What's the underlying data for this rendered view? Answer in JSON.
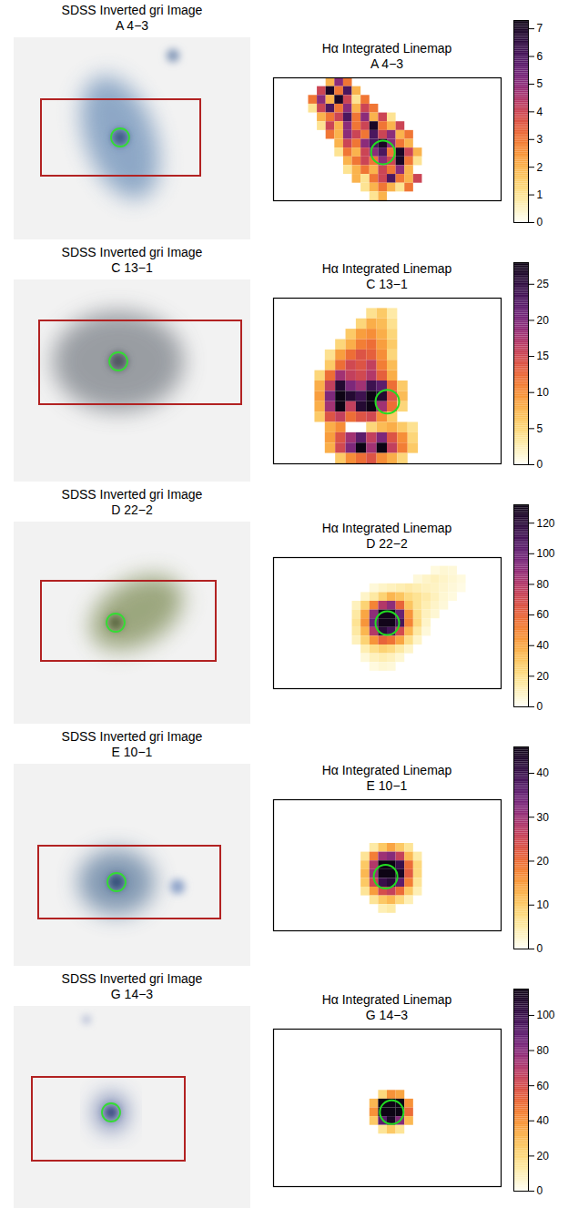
{
  "chart_data": [
    {
      "type": "image",
      "title": "SDSS Inverted gri Image",
      "subtitle": "A 4−3"
    },
    {
      "type": "heatmap",
      "title": "Hα Integrated Linemap",
      "subtitle": "A 4−3",
      "tick_labels": false,
      "xlim": [
        0,
        26
      ],
      "ylim": [
        0,
        14
      ],
      "cells": [
        {
          "row": 0,
          "col": 6,
          "values": [
            2,
            5,
            3
          ]
        },
        {
          "row": 1,
          "col": 5,
          "values": [
            4,
            7,
            3,
            6,
            2
          ]
        },
        {
          "row": 2,
          "col": 4,
          "values": [
            3,
            5,
            2,
            7,
            4,
            1,
            3
          ]
        },
        {
          "row": 3,
          "col": 4,
          "values": [
            1,
            4,
            6,
            3,
            5,
            2,
            4,
            3
          ]
        },
        {
          "row": 4,
          "col": 5,
          "values": [
            2,
            3,
            4,
            6,
            3,
            5,
            2,
            4,
            1
          ]
        },
        {
          "row": 5,
          "col": 5,
          "values": [
            1,
            4,
            2,
            5,
            3,
            4,
            7,
            3,
            2,
            4
          ]
        },
        {
          "row": 6,
          "col": 6,
          "values": [
            3,
            2,
            5,
            4,
            3,
            6,
            4,
            5,
            2,
            3
          ]
        },
        {
          "row": 7,
          "col": 7,
          "values": [
            2,
            4,
            3,
            5,
            6,
            7,
            5,
            3,
            2
          ]
        },
        {
          "row": 8,
          "col": 7,
          "values": [
            1,
            3,
            2,
            4,
            5,
            6,
            3,
            7,
            4,
            2
          ]
        },
        {
          "row": 9,
          "col": 8,
          "values": [
            2,
            3,
            4,
            3,
            5,
            4,
            7,
            3,
            1
          ]
        },
        {
          "row": 10,
          "col": 8,
          "values": [
            1,
            2,
            3,
            2,
            4,
            3,
            5,
            2
          ]
        },
        {
          "row": 11,
          "col": 9,
          "values": [
            2,
            1,
            3,
            4,
            6,
            3,
            2,
            4
          ]
        },
        {
          "row": 12,
          "col": 10,
          "values": [
            1,
            2,
            3,
            2,
            1,
            3
          ]
        },
        {
          "row": 13,
          "col": 11,
          "values": [
            1,
            2
          ]
        }
      ],
      "aperture": [
        12.5,
        8.5
      ],
      "colorbar": {
        "lim": [
          0,
          7.3
        ],
        "ticks": [
          0,
          1,
          2,
          3,
          4,
          5,
          6,
          7
        ]
      }
    },
    {
      "type": "image",
      "title": "SDSS Inverted gri Image",
      "subtitle": "C 13−1"
    },
    {
      "type": "heatmap",
      "title": "Hα Integrated Linemap",
      "subtitle": "C 13−1",
      "tick_labels": false,
      "xlim": [
        0,
        22
      ],
      "ylim": [
        0,
        16
      ],
      "cells": [
        {
          "row": 1,
          "col": 9,
          "values": [
            4,
            6,
            3
          ]
        },
        {
          "row": 2,
          "col": 8,
          "values": [
            5,
            8,
            7,
            4
          ]
        },
        {
          "row": 3,
          "col": 7,
          "values": [
            6,
            9,
            10,
            8,
            5
          ]
        },
        {
          "row": 4,
          "col": 6,
          "values": [
            5,
            8,
            11,
            12,
            9,
            6
          ]
        },
        {
          "row": 5,
          "col": 5,
          "values": [
            4,
            9,
            12,
            14,
            13,
            10,
            5
          ]
        },
        {
          "row": 6,
          "col": 5,
          "values": [
            6,
            12,
            15,
            14,
            16,
            11,
            7
          ]
        },
        {
          "row": 7,
          "col": 4,
          "values": [
            5,
            12,
            18,
            16,
            15,
            17,
            13,
            8
          ]
        },
        {
          "row": 8,
          "col": 4,
          "values": [
            8,
            16,
            26,
            20,
            18,
            24,
            22,
            12,
            6
          ]
        },
        {
          "row": 9,
          "col": 4,
          "values": [
            9,
            20,
            28,
            26,
            24,
            28,
            26,
            14,
            7
          ]
        },
        {
          "row": 10,
          "col": 4,
          "values": [
            8,
            18,
            28,
            16,
            26,
            28,
            18,
            12,
            5
          ]
        },
        {
          "row": 11,
          "col": 4,
          "values": [
            6,
            14,
            16,
            12,
            14,
            15,
            10,
            6
          ]
        },
        {
          "row": 12,
          "col": 5,
          "values": [
            8,
            10,
            null,
            null,
            5,
            7,
            8,
            6,
            4
          ]
        },
        {
          "row": 13,
          "col": 5,
          "values": [
            9,
            14,
            18,
            22,
            16,
            20,
            14,
            10,
            5
          ]
        },
        {
          "row": 14,
          "col": 5,
          "values": [
            8,
            15,
            20,
            28,
            18,
            28,
            16,
            11,
            6
          ]
        },
        {
          "row": 15,
          "col": 6,
          "values": [
            6,
            10,
            12,
            14,
            10,
            8,
            5
          ]
        }
      ],
      "aperture": [
        11,
        10
      ],
      "colorbar": {
        "lim": [
          0,
          28
        ],
        "ticks": [
          0,
          5,
          10,
          15,
          20,
          25
        ]
      }
    },
    {
      "type": "image",
      "title": "SDSS Inverted gri Image",
      "subtitle": "D 22−2"
    },
    {
      "type": "heatmap",
      "title": "Hα Integrated Linemap",
      "subtitle": "D 22−2",
      "tick_labels": false,
      "xlim": [
        0,
        26
      ],
      "ylim": [
        0,
        15
      ],
      "cells": [
        {
          "row": 1,
          "col": 18,
          "values": [
            4,
            6,
            5
          ]
        },
        {
          "row": 2,
          "col": 16,
          "values": [
            5,
            8,
            10,
            8,
            6,
            4
          ]
        },
        {
          "row": 3,
          "col": 11,
          "values": [
            5,
            8,
            10,
            12,
            14,
            12,
            10,
            9,
            7,
            5,
            3
          ]
        },
        {
          "row": 4,
          "col": 10,
          "values": [
            8,
            15,
            25,
            35,
            30,
            22,
            18,
            14,
            10,
            6,
            4
          ]
        },
        {
          "row": 5,
          "col": 9,
          "values": [
            10,
            25,
            50,
            80,
            90,
            60,
            30,
            18,
            12,
            8,
            5
          ]
        },
        {
          "row": 6,
          "col": 9,
          "values": [
            15,
            40,
            90,
            130,
            130,
            100,
            45,
            20,
            10,
            6
          ]
        },
        {
          "row": 7,
          "col": 9,
          "values": [
            18,
            45,
            100,
            130,
            130,
            110,
            50,
            22,
            8
          ]
        },
        {
          "row": 8,
          "col": 9,
          "values": [
            15,
            35,
            80,
            120,
            110,
            70,
            35,
            15,
            5
          ]
        },
        {
          "row": 9,
          "col": 9,
          "values": [
            10,
            25,
            45,
            60,
            55,
            40,
            20,
            8
          ]
        },
        {
          "row": 10,
          "col": 10,
          "values": [
            12,
            20,
            25,
            22,
            15,
            8
          ]
        },
        {
          "row": 11,
          "col": 10,
          "values": [
            5,
            10,
            12,
            10,
            6
          ]
        },
        {
          "row": 12,
          "col": 11,
          "values": [
            4,
            6,
            5
          ]
        }
      ],
      "aperture": [
        13,
        7.5
      ],
      "colorbar": {
        "lim": [
          0,
          132
        ],
        "ticks": [
          0,
          20,
          40,
          60,
          80,
          100,
          120
        ]
      }
    },
    {
      "type": "image",
      "title": "SDSS Inverted gri Image",
      "subtitle": "E 10−1"
    },
    {
      "type": "heatmap",
      "title": "Hα Integrated Linemap",
      "subtitle": "E 10−1",
      "tick_labels": false,
      "xlim": [
        0,
        26
      ],
      "ylim": [
        0,
        15
      ],
      "cells": [
        {
          "row": 5,
          "col": 11,
          "values": [
            5,
            10,
            14,
            10,
            6
          ]
        },
        {
          "row": 6,
          "col": 10,
          "values": [
            6,
            18,
            30,
            32,
            26,
            12,
            5
          ]
        },
        {
          "row": 7,
          "col": 10,
          "values": [
            10,
            28,
            46,
            46,
            40,
            20,
            8
          ]
        },
        {
          "row": 8,
          "col": 10,
          "values": [
            12,
            30,
            46,
            46,
            44,
            22,
            8
          ]
        },
        {
          "row": 9,
          "col": 10,
          "values": [
            10,
            25,
            40,
            42,
            36,
            18,
            6
          ]
        },
        {
          "row": 10,
          "col": 10,
          "values": [
            6,
            15,
            24,
            26,
            20,
            10,
            4
          ]
        },
        {
          "row": 11,
          "col": 11,
          "values": [
            6,
            10,
            12,
            8,
            4
          ]
        },
        {
          "row": 12,
          "col": 12,
          "values": [
            4,
            5
          ]
        }
      ],
      "aperture": [
        12.8,
        8.8
      ],
      "colorbar": {
        "lim": [
          0,
          46
        ],
        "ticks": [
          0,
          10,
          20,
          30,
          40
        ]
      }
    },
    {
      "type": "image",
      "title": "SDSS Inverted gri Image",
      "subtitle": "G 14−3"
    },
    {
      "type": "heatmap",
      "title": "Hα Integrated Linemap",
      "subtitle": "G 14−3",
      "tick_labels": false,
      "xlim": [
        0,
        26
      ],
      "ylim": [
        0,
        18
      ],
      "cells": [
        {
          "row": 7,
          "col": 12,
          "values": [
            20,
            40,
            35
          ]
        },
        {
          "row": 8,
          "col": 11,
          "values": [
            30,
            115,
            115,
            115,
            40
          ]
        },
        {
          "row": 9,
          "col": 11,
          "values": [
            40,
            115,
            115,
            115,
            50
          ]
        },
        {
          "row": 10,
          "col": 11,
          "values": [
            25,
            90,
            110,
            80,
            30
          ]
        },
        {
          "row": 11,
          "col": 12,
          "values": [
            15,
            25,
            15
          ]
        }
      ],
      "aperture": [
        13.5,
        9.5
      ],
      "colorbar": {
        "lim": [
          0,
          115
        ],
        "ticks": [
          0,
          20,
          40,
          60,
          80,
          100
        ]
      }
    }
  ]
}
